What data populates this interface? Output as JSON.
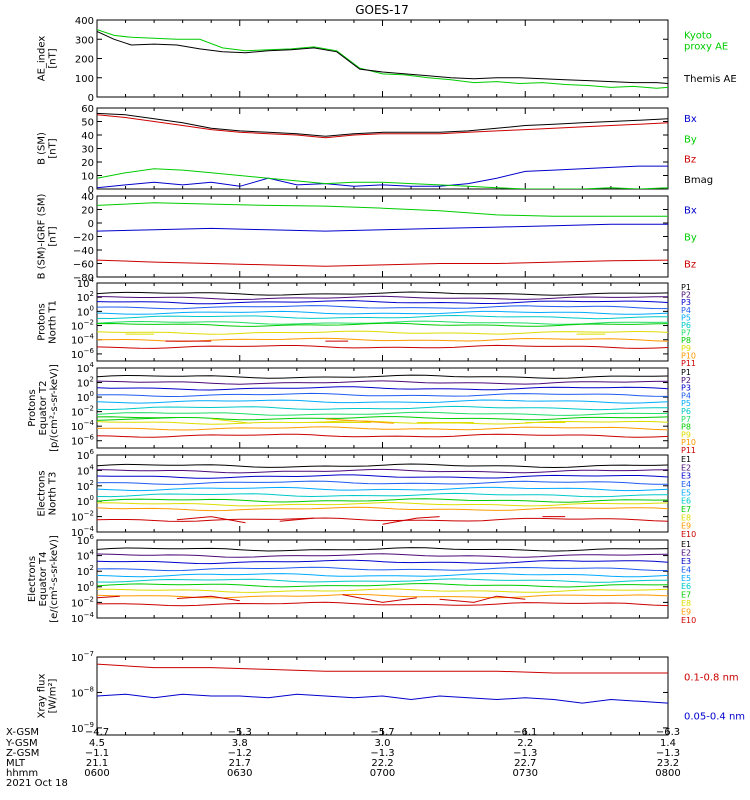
{
  "title": "GOES-17",
  "chart_data": [
    {
      "type": "line",
      "panel": "ae",
      "ylabel_lines": [
        "AE_index",
        "[nT]"
      ],
      "yticks": [
        "400",
        "300",
        "200",
        "100",
        "0"
      ],
      "ylim": [
        0,
        400
      ],
      "series": [
        {
          "name": "Kyoto proxy AE",
          "legend_lines": [
            "Kyoto",
            "proxy AE"
          ],
          "color": "#00cc00",
          "x": [
            0.0,
            0.03,
            0.06,
            0.1,
            0.14,
            0.18,
            0.22,
            0.26,
            0.3,
            0.34,
            0.38,
            0.42,
            0.46,
            0.5,
            0.54,
            0.58,
            0.62,
            0.66,
            0.7,
            0.74,
            0.78,
            0.82,
            0.86,
            0.9,
            0.94,
            0.98,
            1.0
          ],
          "y": [
            350,
            320,
            310,
            305,
            300,
            300,
            255,
            240,
            245,
            250,
            260,
            240,
            150,
            120,
            115,
            100,
            90,
            75,
            80,
            70,
            75,
            65,
            60,
            50,
            55,
            45,
            50
          ]
        },
        {
          "name": "Themis AE",
          "legend_lines": [
            "Themis AE"
          ],
          "color": "#000000",
          "x": [
            0.0,
            0.03,
            0.06,
            0.1,
            0.14,
            0.18,
            0.22,
            0.26,
            0.3,
            0.34,
            0.38,
            0.42,
            0.46,
            0.5,
            0.54,
            0.58,
            0.62,
            0.66,
            0.7,
            0.74,
            0.78,
            0.82,
            0.86,
            0.9,
            0.94,
            0.98,
            1.0
          ],
          "y": [
            340,
            300,
            270,
            275,
            270,
            250,
            235,
            230,
            240,
            245,
            255,
            235,
            145,
            130,
            120,
            110,
            100,
            95,
            100,
            100,
            95,
            90,
            85,
            80,
            75,
            75,
            70
          ]
        }
      ]
    },
    {
      "type": "line",
      "panel": "b_sm",
      "ylabel_lines": [
        "B (SM)",
        "[nT]"
      ],
      "yticks": [
        "60",
        "50",
        "40",
        "30",
        "20",
        "10",
        "0"
      ],
      "ylim": [
        0,
        60
      ],
      "series": [
        {
          "name": "Bx",
          "color": "#0000cc",
          "x": [
            0.0,
            0.05,
            0.1,
            0.15,
            0.2,
            0.25,
            0.3,
            0.35,
            0.4,
            0.45,
            0.5,
            0.55,
            0.6,
            0.65,
            0.7,
            0.75,
            0.8,
            0.85,
            0.9,
            0.95,
            1.0
          ],
          "y": [
            1,
            3,
            5,
            3,
            5,
            2,
            8,
            3,
            4,
            2,
            3,
            2,
            2,
            4,
            8,
            13,
            14,
            15,
            16,
            17,
            17
          ]
        },
        {
          "name": "By",
          "color": "#00cc00",
          "x": [
            0.0,
            0.05,
            0.1,
            0.15,
            0.2,
            0.25,
            0.3,
            0.35,
            0.4,
            0.45,
            0.5,
            0.55,
            0.6,
            0.65,
            0.7,
            0.75,
            0.8,
            0.85,
            0.9,
            0.95,
            1.0
          ],
          "y": [
            8,
            12,
            15,
            14,
            12,
            10,
            8,
            6,
            4,
            5,
            5,
            4,
            3,
            2,
            1,
            0,
            0,
            0,
            1,
            0,
            1
          ]
        },
        {
          "name": "Bz",
          "color": "#cc0000",
          "x": [
            0.0,
            0.05,
            0.1,
            0.15,
            0.2,
            0.25,
            0.3,
            0.35,
            0.4,
            0.45,
            0.5,
            0.55,
            0.6,
            0.65,
            0.7,
            0.75,
            0.8,
            0.85,
            0.9,
            0.95,
            1.0
          ],
          "y": [
            55,
            53,
            50,
            47,
            44,
            42,
            41,
            40,
            38,
            40,
            41,
            41,
            41,
            42,
            43,
            44,
            45,
            46,
            47,
            48,
            49
          ]
        },
        {
          "name": "Bmag",
          "color": "#000000",
          "x": [
            0.0,
            0.05,
            0.1,
            0.15,
            0.2,
            0.25,
            0.3,
            0.35,
            0.4,
            0.45,
            0.5,
            0.55,
            0.6,
            0.65,
            0.7,
            0.75,
            0.8,
            0.85,
            0.9,
            0.95,
            1.0
          ],
          "y": [
            56,
            55,
            52,
            49,
            45,
            43,
            42,
            41,
            39,
            41,
            42,
            42,
            42,
            43,
            45,
            47,
            48,
            49,
            50,
            51,
            52
          ]
        }
      ]
    },
    {
      "type": "line",
      "panel": "b_igrf",
      "ylabel_lines": [
        "B (SM)-IGRF (SM)",
        "[nT]"
      ],
      "yticks": [
        "40",
        "20",
        "0",
        "−20",
        "−40",
        "−60",
        "−80"
      ],
      "ylim": [
        -80,
        40
      ],
      "series": [
        {
          "name": "Bx",
          "color": "#0000cc",
          "x": [
            0.0,
            0.1,
            0.2,
            0.3,
            0.4,
            0.5,
            0.6,
            0.7,
            0.8,
            0.9,
            1.0
          ],
          "y": [
            -12,
            -10,
            -8,
            -10,
            -12,
            -10,
            -8,
            -6,
            -4,
            -2,
            -2
          ]
        },
        {
          "name": "By",
          "color": "#00cc00",
          "x": [
            0.0,
            0.1,
            0.2,
            0.3,
            0.4,
            0.5,
            0.6,
            0.7,
            0.8,
            0.9,
            1.0
          ],
          "y": [
            26,
            30,
            28,
            26,
            25,
            22,
            18,
            12,
            10,
            10,
            10
          ]
        },
        {
          "name": "Bz",
          "color": "#cc0000",
          "x": [
            0.0,
            0.1,
            0.2,
            0.3,
            0.4,
            0.5,
            0.6,
            0.7,
            0.8,
            0.9,
            1.0
          ],
          "y": [
            -55,
            -58,
            -60,
            -62,
            -64,
            -62,
            -60,
            -60,
            -58,
            -56,
            -55
          ]
        }
      ]
    },
    {
      "type": "line",
      "panel": "p_t1",
      "ylabel_lines": [
        "Protons",
        "North T1"
      ],
      "log": true,
      "yticks_exp": [
        4,
        2,
        0,
        -2,
        -4,
        -6
      ],
      "ylim": [
        -7,
        4
      ],
      "series_names": [
        "P1",
        "P2",
        "P3",
        "P4",
        "P5",
        "P6",
        "P7",
        "P8",
        "P9",
        "P10",
        "P11"
      ],
      "series_colors": [
        "#000000",
        "#4a0a7a",
        "#0000cc",
        "#1e5cf0",
        "#00aaff",
        "#00c8c8",
        "#22dd66",
        "#00cc00",
        "#dddd00",
        "#ff9900",
        "#cc0000"
      ],
      "series_levels": [
        2.5,
        1.9,
        1.3,
        0.6,
        -0.2,
        -0.8,
        -1.6,
        -1.9,
        -3.0,
        -4.0,
        -5.0
      ],
      "segments": [
        {
          "series": "P9",
          "x": [
            0.05,
            0.1
          ],
          "y": [
            -3.2,
            -3.2
          ]
        },
        {
          "series": "P11",
          "x": [
            0.12,
            0.2
          ],
          "y": [
            -4.2,
            -4.2
          ]
        },
        {
          "series": "P11",
          "x": [
            0.4,
            0.44
          ],
          "y": [
            -4.2,
            -4.2
          ]
        },
        {
          "series": "P9",
          "x": [
            0.84,
            0.89
          ],
          "y": [
            -3.2,
            -3.2
          ]
        }
      ]
    },
    {
      "type": "line",
      "panel": "p_t2",
      "ylabel_lines": [
        "Protons",
        "Equator T2",
        "[p/(cm²-s-sr-keV)]"
      ],
      "log": true,
      "yticks_exp": [
        4,
        2,
        0,
        -2,
        -4,
        -6
      ],
      "ylim": [
        -7,
        4
      ],
      "series_names": [
        "P1",
        "P2",
        "P3",
        "P4",
        "P5",
        "P6",
        "P7",
        "P8",
        "P9",
        "P10",
        "P11"
      ],
      "series_colors": [
        "#000000",
        "#4a0a7a",
        "#0000cc",
        "#1e5cf0",
        "#00aaff",
        "#00c8c8",
        "#22dd66",
        "#00cc00",
        "#dddd00",
        "#ff9900",
        "#cc0000"
      ],
      "series_levels": [
        2.8,
        2.0,
        1.2,
        0.3,
        -0.6,
        -1.5,
        -2.3,
        -2.9,
        -3.5,
        -4.3,
        -5.3
      ],
      "segments": [
        {
          "series": "P8",
          "x": [
            0.0,
            0.14
          ],
          "y": [
            -3.2,
            -2.8
          ]
        },
        {
          "series": "P9",
          "x": [
            0.2,
            0.27
          ],
          "y": [
            -3.0,
            -3.6
          ]
        },
        {
          "series": "P9",
          "x": [
            0.36,
            0.48
          ],
          "y": [
            -3.5,
            -3.5
          ]
        },
        {
          "series": "P10",
          "x": [
            0.4,
            0.52
          ],
          "y": [
            -3.0,
            -3.6
          ]
        },
        {
          "series": "P9",
          "x": [
            0.56,
            0.66
          ],
          "y": [
            -3.5,
            -3.5
          ]
        },
        {
          "series": "P9",
          "x": [
            0.75,
            0.82
          ],
          "y": [
            -3.5,
            -3.5
          ]
        }
      ]
    },
    {
      "type": "line",
      "panel": "e_t3",
      "ylabel_lines": [
        "Electrons",
        "North T3"
      ],
      "log": true,
      "yticks_exp": [
        6,
        4,
        2,
        0,
        -2,
        -4
      ],
      "ylim": [
        -4,
        6
      ],
      "series_names": [
        "E1",
        "E2",
        "E3",
        "E4",
        "E5",
        "E6",
        "E7",
        "E8",
        "E9",
        "E10"
      ],
      "series_colors": [
        "#000000",
        "#4a0a7a",
        "#0000cc",
        "#1e5cf0",
        "#00aaff",
        "#00c8c8",
        "#00cc00",
        "#dddd00",
        "#ff9900",
        "#cc0000"
      ],
      "series_levels": [
        4.6,
        3.9,
        3.2,
        2.4,
        1.6,
        0.8,
        0.1,
        -0.4,
        -1.0,
        -2.4
      ],
      "segments": [
        {
          "series": "E10",
          "x": [
            0.14,
            0.2,
            0.26
          ],
          "y": [
            -2.4,
            -2.0,
            -2.8
          ]
        },
        {
          "series": "E10",
          "x": [
            0.32,
            0.38
          ],
          "y": [
            -2.6,
            -2.2
          ]
        },
        {
          "series": "E10",
          "x": [
            0.5,
            0.56,
            0.6
          ],
          "y": [
            -3.0,
            -2.2,
            -2.0
          ]
        },
        {
          "series": "E10",
          "x": [
            0.78,
            0.82
          ],
          "y": [
            -2.0,
            -2.0
          ]
        }
      ]
    },
    {
      "type": "line",
      "panel": "e_t4",
      "ylabel_lines": [
        "Electrons",
        "Equator T4",
        "[e/(cm²-s-sr-keV)]"
      ],
      "log": true,
      "yticks_exp": [
        6,
        4,
        2,
        0,
        -2,
        -4
      ],
      "ylim": [
        -4,
        6
      ],
      "series_names": [
        "E1",
        "E2",
        "E3",
        "E4",
        "E5",
        "E6",
        "E7",
        "E8",
        "E9",
        "E10"
      ],
      "series_colors": [
        "#000000",
        "#4a0a7a",
        "#0000cc",
        "#1e5cf0",
        "#00aaff",
        "#00c8c8",
        "#00cc00",
        "#dddd00",
        "#ff9900",
        "#cc0000"
      ],
      "series_levels": [
        4.8,
        4.0,
        3.2,
        2.3,
        1.5,
        0.8,
        0.2,
        -0.5,
        -1.2,
        -2.2
      ],
      "segments": [
        {
          "series": "E10",
          "x": [
            0.0,
            0.04
          ],
          "y": [
            -1.4,
            -1.2
          ]
        },
        {
          "series": "E10",
          "x": [
            0.14,
            0.2,
            0.25
          ],
          "y": [
            -1.5,
            -1.2,
            -1.8
          ]
        },
        {
          "series": "E10",
          "x": [
            0.43,
            0.5,
            0.56
          ],
          "y": [
            -1.0,
            -2.0,
            -1.4
          ]
        },
        {
          "series": "E10",
          "x": [
            0.6,
            0.66,
            0.7,
            0.75
          ],
          "y": [
            -1.6,
            -2.0,
            -1.2,
            -1.6
          ]
        }
      ]
    },
    {
      "type": "line",
      "panel": "xray",
      "ylabel_lines": [
        "Xray flux",
        "[W/m²]"
      ],
      "log": true,
      "yticks_exp": [
        -7,
        -8,
        -9
      ],
      "ylim": [
        -9.2,
        -7
      ],
      "series": [
        {
          "name": "0.1-0.8 nm",
          "color": "#cc0000",
          "x": [
            0.0,
            0.1,
            0.2,
            0.3,
            0.4,
            0.5,
            0.6,
            0.7,
            0.8,
            0.9,
            1.0
          ],
          "y": [
            -7.2,
            -7.3,
            -7.3,
            -7.35,
            -7.4,
            -7.4,
            -7.4,
            -7.4,
            -7.45,
            -7.45,
            -7.45
          ]
        },
        {
          "name": "0.05-0.4 nm",
          "color": "#0000cc",
          "x": [
            0.0,
            0.05,
            0.1,
            0.15,
            0.2,
            0.25,
            0.3,
            0.35,
            0.4,
            0.45,
            0.5,
            0.55,
            0.6,
            0.65,
            0.7,
            0.75,
            0.8,
            0.85,
            0.9,
            0.95,
            1.0
          ],
          "y": [
            -8.1,
            -8.05,
            -8.15,
            -8.05,
            -8.1,
            -8.1,
            -8.15,
            -8.05,
            -8.1,
            -8.15,
            -8.1,
            -8.2,
            -8.1,
            -8.15,
            -8.2,
            -8.15,
            -8.2,
            -8.3,
            -8.2,
            -8.25,
            -8.3
          ]
        }
      ]
    }
  ],
  "xaxis": {
    "row_labels": [
      "X-GSM",
      "Y-GSM",
      "Z-GSM",
      "MLT",
      "hhmm",
      "2021 Oct 18"
    ],
    "columns": [
      {
        "values": [
          "−4.7",
          "4.5",
          "−1.1",
          "21.1",
          "0600"
        ]
      },
      {
        "values": [
          "−5.3",
          "3.8",
          "−1.2",
          "21.7",
          "0630"
        ]
      },
      {
        "values": [
          "−5.7",
          "3.0",
          "−1.3",
          "22.2",
          "0700"
        ]
      },
      {
        "values": [
          "−6.1",
          "2.2",
          "−1.3",
          "22.7",
          "0730"
        ]
      },
      {
        "values": [
          "−6.3",
          "1.4",
          "−1.3",
          "23.2",
          "0800"
        ]
      }
    ]
  }
}
